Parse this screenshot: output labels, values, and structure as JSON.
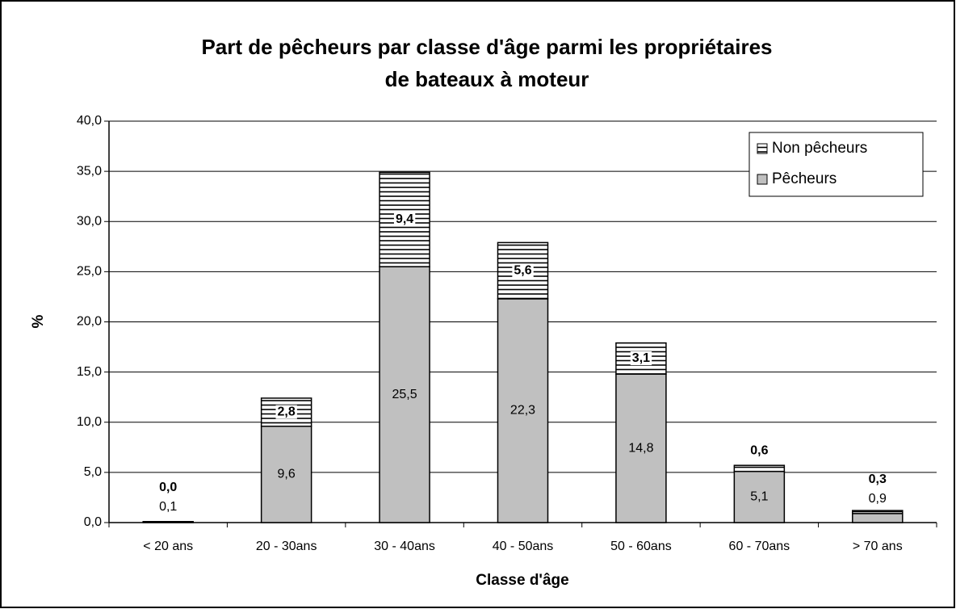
{
  "chart_data": {
    "type": "stacked-bar",
    "title": [
      "Part de pêcheurs par classe d'âge parmi les propriétaires",
      "de bateaux à moteur"
    ],
    "x_label": "Classe d'âge",
    "y_label": "%",
    "categories": [
      "< 20 ans",
      "20 - 30ans",
      "30 - 40ans",
      "40 - 50ans",
      "50 - 60ans",
      "60 - 70ans",
      "> 70 ans"
    ],
    "series": [
      {
        "name": "Pêcheurs",
        "color": "#c0c0c0",
        "values": [
          0.1,
          9.6,
          25.5,
          22.3,
          14.8,
          5.1,
          0.9
        ],
        "value_labels": [
          "0,1",
          "9,6",
          "25,5",
          "22,3",
          "14,8",
          "5,1",
          "0,9"
        ]
      },
      {
        "name": "Non pêcheurs",
        "color": "#000000",
        "hatch": "horizontal",
        "values": [
          0.0,
          2.8,
          9.4,
          5.6,
          3.1,
          0.6,
          0.3
        ],
        "value_labels": [
          "0,0",
          "2,8",
          "9,4",
          "5,6",
          "3,1",
          "0,6",
          "0,3"
        ]
      }
    ],
    "ylim": [
      0,
      40
    ],
    "yticks": [
      {
        "value": 0,
        "label": "0,0"
      },
      {
        "value": 5,
        "label": "5,0"
      },
      {
        "value": 10,
        "label": "10,0"
      },
      {
        "value": 15,
        "label": "15,0"
      },
      {
        "value": 20,
        "label": "20,0"
      },
      {
        "value": 25,
        "label": "25,0"
      },
      {
        "value": 30,
        "label": "30,0"
      },
      {
        "value": 35,
        "label": "35,0"
      },
      {
        "value": 40,
        "label": "40,0"
      }
    ],
    "grid": true,
    "legend": "upper right"
  }
}
